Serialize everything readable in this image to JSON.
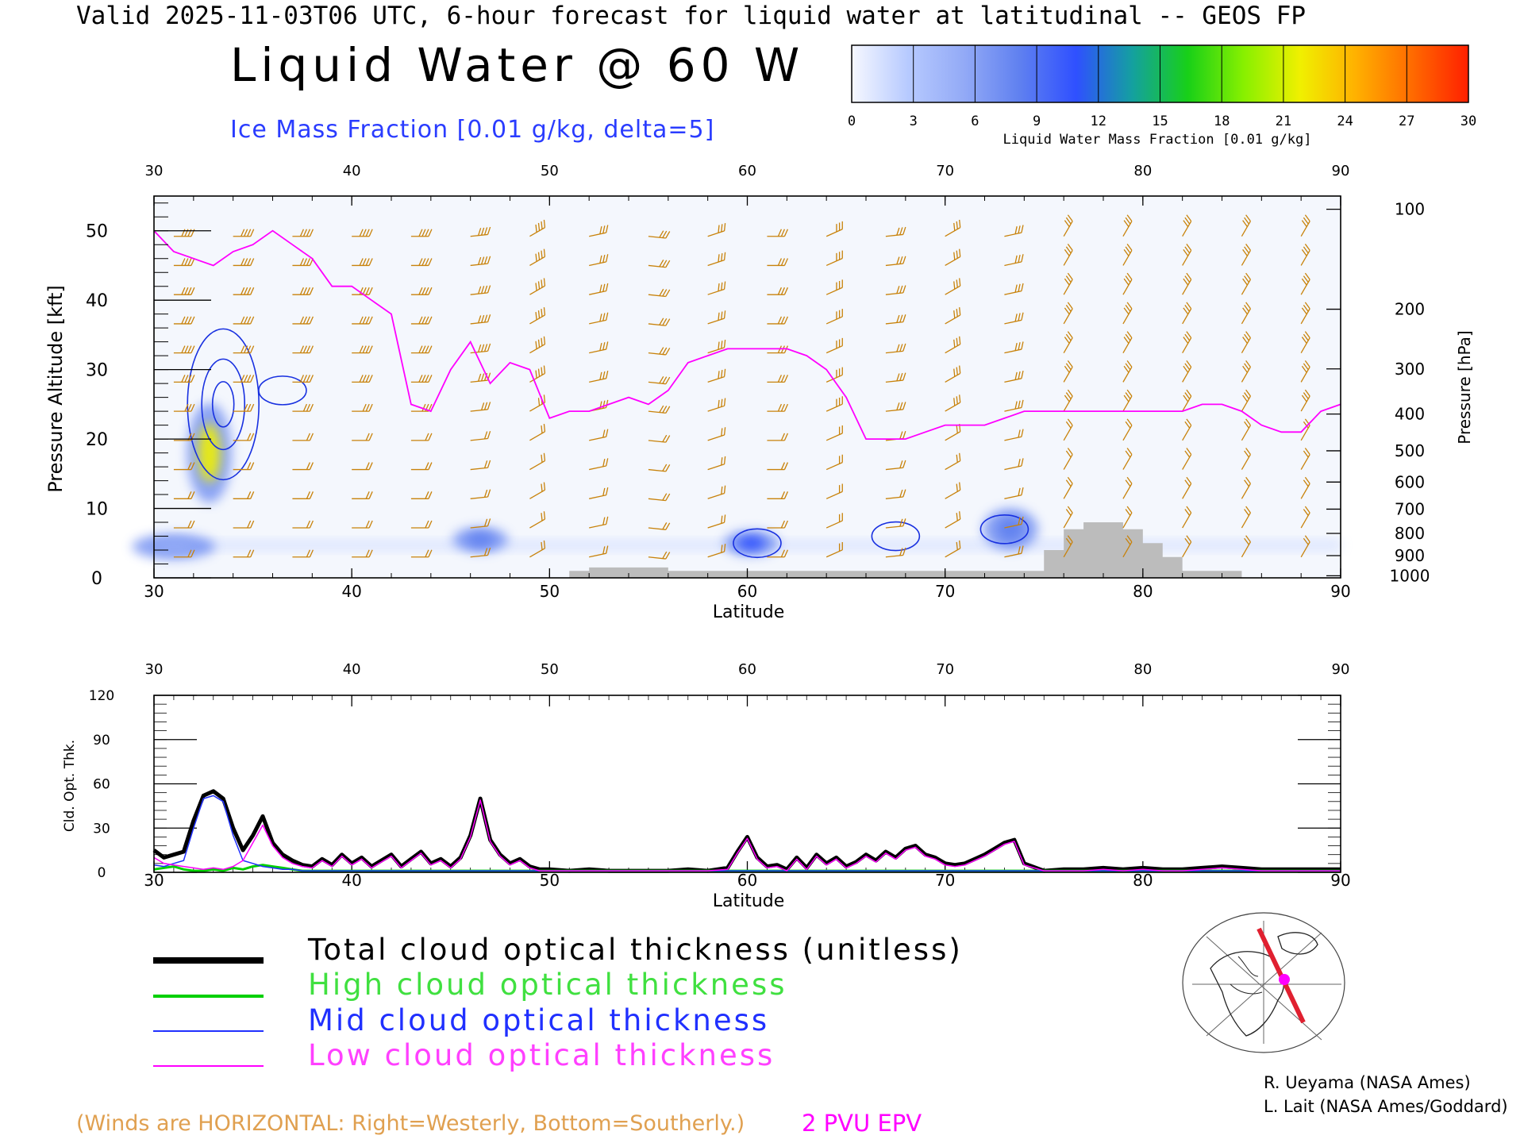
{
  "header": {
    "valid_line": "Valid 2025-11-03T06 UTC, 6-hour forecast for liquid water at latitudinal -- GEOS FP",
    "main_title": "Liquid Water @ 60 W",
    "contour_caption": "Ice Mass Fraction [0.01 g/kg, delta=5]"
  },
  "colorbar": {
    "ticks": [
      "0",
      "3",
      "6",
      "9",
      "12",
      "15",
      "18",
      "21",
      "24",
      "27",
      "30"
    ],
    "label": "Liquid Water Mass Fraction [0.01 g/kg]",
    "colors": [
      "#f6f8ff",
      "#b7caff",
      "#93aaf6",
      "#5f80f0",
      "#2f50ff",
      "#14a0a0",
      "#18d018",
      "#88f000",
      "#f0f000",
      "#ffb000",
      "#ff6a00",
      "#ff2000"
    ]
  },
  "legend": {
    "total": "Total cloud optical thickness (unitless)",
    "high": "High cloud optical thickness",
    "mid": "Mid cloud optical thickness",
    "low": "Low cloud optical thickness"
  },
  "credits": [
    "R. Ueyama (NASA Ames)",
    "L. Lait (NASA Ames/Goddard)"
  ],
  "footer": {
    "winds_note": "(Winds are HORIZONTAL: Right=Westerly, Bottom=Southerly.)",
    "pv_label": "2 PVU EPV"
  },
  "colors": {
    "epv": "#ff00ff",
    "wind_barbs": "#c8820a",
    "ice_contour": "#1830e0",
    "terrain": "#bcbcbc",
    "total": "#000000",
    "high": "#00d000",
    "mid": "#2030ff",
    "low": "#ff00ff",
    "map_track": "#e02030"
  },
  "chart_data": [
    {
      "type": "heatmap",
      "xlabel": "Latitude",
      "ylabel": "Pressure Altitude [kft]",
      "ylabel_right": "Pressure [hPa]",
      "xlim": [
        30,
        90
      ],
      "ylim": [
        0,
        55
      ],
      "x_ticks": [
        30,
        40,
        50,
        60,
        70,
        80,
        90
      ],
      "y_ticks": [
        0,
        10,
        20,
        30,
        40,
        50
      ],
      "pressure_ticks": [
        {
          "hpa": "100",
          "kft": 53.1
        },
        {
          "hpa": "200",
          "kft": 38.7
        },
        {
          "hpa": "300",
          "kft": 30.1
        },
        {
          "hpa": "400",
          "kft": 23.6
        },
        {
          "hpa": "500",
          "kft": 18.3
        },
        {
          "hpa": "600",
          "kft": 13.8
        },
        {
          "hpa": "700",
          "kft": 9.9
        },
        {
          "hpa": "800",
          "kft": 6.4
        },
        {
          "hpa": "900",
          "kft": 3.2
        },
        {
          "hpa": "1000",
          "kft": 0.3
        }
      ],
      "epv_2pvu_line": {
        "lat": [
          30,
          31,
          32,
          33,
          34,
          35,
          36,
          37,
          38,
          39,
          40,
          41,
          42,
          43,
          44,
          45,
          46,
          47,
          48,
          49,
          50,
          51,
          52,
          53,
          54,
          55,
          56,
          57,
          58,
          59,
          60,
          61,
          62,
          63,
          64,
          65,
          66,
          67,
          68,
          69,
          70,
          71,
          72,
          73,
          74,
          75,
          76,
          77,
          78,
          79,
          80,
          81,
          82,
          83,
          84,
          85,
          86,
          87,
          88,
          89,
          90
        ],
        "kft": [
          50,
          47,
          46,
          45,
          47,
          48,
          50,
          48,
          46,
          42,
          42,
          40,
          38,
          25,
          24,
          30,
          34,
          28,
          31,
          30,
          23,
          24,
          24,
          25,
          26,
          25,
          27,
          31,
          32,
          33,
          33,
          33,
          33,
          32,
          30,
          26,
          20,
          20,
          20,
          21,
          22,
          22,
          22,
          23,
          24,
          24,
          24,
          24,
          24,
          24,
          24,
          24,
          24,
          25,
          25,
          24,
          22,
          21,
          21,
          24,
          25
        ]
      },
      "terrain": {
        "lat": [
          30,
          50,
          51,
          52,
          53,
          54,
          55,
          56,
          57,
          58,
          60,
          62,
          64,
          66,
          68,
          70,
          72,
          74,
          75,
          76,
          77,
          78,
          79,
          80,
          81,
          82,
          83,
          84,
          85,
          86,
          90
        ],
        "kft": [
          0,
          0,
          1,
          1.5,
          1.5,
          1.5,
          1.5,
          1,
          1,
          1,
          1,
          1,
          1,
          1,
          1,
          1,
          1,
          1,
          4,
          7,
          8,
          8,
          7,
          5,
          3,
          1,
          1,
          1,
          0,
          0,
          0
        ]
      },
      "liquid_water_blobs": [
        {
          "lat": 32.8,
          "kft": 18,
          "value": 21,
          "lat_extent": 0.8,
          "kft_extent": 6
        },
        {
          "lat": 60.2,
          "kft": 5,
          "value": 12,
          "lat_extent": 1.0,
          "kft_extent": 1.5
        },
        {
          "lat": 46.5,
          "kft": 5.5,
          "value": 8,
          "lat_extent": 1.0,
          "kft_extent": 1.5
        },
        {
          "lat": 73.3,
          "kft": 7,
          "value": 7,
          "lat_extent": 1.0,
          "kft_extent": 2.5
        },
        {
          "lat": 31,
          "kft": 4.5,
          "value": 6,
          "lat_extent": 1.5,
          "kft_extent": 1.5
        }
      ],
      "ice_contours": [
        {
          "lat": 33.5,
          "kft": 25,
          "value": 10
        },
        {
          "lat": 36.5,
          "kft": 27,
          "value": 5
        },
        {
          "lat": 60.5,
          "kft": 5,
          "value": 5
        },
        {
          "lat": 67.5,
          "kft": 6,
          "value": 5
        },
        {
          "lat": 73,
          "kft": 7,
          "value": 5
        }
      ]
    },
    {
      "type": "line",
      "xlabel": "Latitude",
      "ylabel": "Cld. Opt. Thk.",
      "xlim": [
        30,
        90
      ],
      "ylim": [
        0,
        120
      ],
      "x_ticks": [
        30,
        40,
        50,
        60,
        70,
        80,
        90
      ],
      "y_ticks": [
        0,
        30,
        60,
        90,
        120
      ],
      "x": [
        30,
        30.5,
        31,
        31.5,
        32,
        32.5,
        33,
        33.5,
        34,
        34.5,
        35,
        35.5,
        36,
        36.5,
        37,
        37.5,
        38,
        38.5,
        39,
        39.5,
        40,
        40.5,
        41,
        41.5,
        42,
        42.5,
        43,
        43.5,
        44,
        44.5,
        45,
        45.5,
        46,
        46.5,
        47,
        47.5,
        48,
        48.5,
        49,
        49.5,
        50,
        51,
        52,
        53,
        54,
        55,
        56,
        57,
        58,
        59,
        59.5,
        60,
        60.5,
        61,
        61.5,
        62,
        62.5,
        63,
        63.5,
        64,
        64.5,
        65,
        65.5,
        66,
        66.5,
        67,
        67.5,
        68,
        68.5,
        69,
        69.5,
        70,
        70.5,
        71,
        71.5,
        72,
        72.5,
        73,
        73.5,
        74,
        75,
        76,
        77,
        78,
        79,
        80,
        81,
        82,
        83,
        84,
        85,
        86,
        87,
        88,
        89,
        90
      ],
      "series": [
        {
          "name": "Total cloud optical thickness (unitless)",
          "values": [
            15,
            10,
            12,
            14,
            35,
            52,
            55,
            50,
            30,
            15,
            25,
            38,
            20,
            12,
            8,
            5,
            4,
            9,
            5,
            12,
            6,
            10,
            4,
            8,
            12,
            4,
            9,
            14,
            6,
            9,
            4,
            10,
            25,
            50,
            22,
            12,
            6,
            9,
            4,
            2,
            2,
            1,
            2,
            1,
            1,
            1,
            1,
            2,
            1,
            3,
            14,
            24,
            10,
            4,
            5,
            2,
            10,
            3,
            12,
            6,
            10,
            4,
            7,
            12,
            8,
            14,
            10,
            16,
            18,
            12,
            10,
            6,
            5,
            6,
            9,
            12,
            16,
            20,
            22,
            6,
            1,
            2,
            2,
            3,
            2,
            3,
            2,
            2,
            3,
            4,
            3,
            2,
            2,
            2,
            2,
            2
          ]
        },
        {
          "name": "High cloud optical thickness",
          "values": [
            2,
            3,
            4,
            2,
            1,
            1,
            2,
            1,
            3,
            2,
            4,
            5,
            4,
            3,
            2,
            1,
            1,
            1,
            1,
            1,
            1,
            1,
            1,
            1,
            1,
            1,
            1,
            1,
            1,
            1,
            1,
            1,
            1,
            1,
            1,
            1,
            1,
            1,
            1,
            1,
            1,
            1,
            1,
            1,
            1,
            1,
            1,
            1,
            1,
            1,
            1,
            1,
            1,
            1,
            1,
            1,
            1,
            1,
            1,
            1,
            1,
            1,
            1,
            1,
            1,
            1,
            1,
            1,
            1,
            1,
            1,
            1,
            1,
            1,
            1,
            1,
            1,
            1,
            1,
            1,
            1,
            1,
            1,
            1,
            1,
            1,
            1,
            1,
            1,
            1,
            1,
            1,
            1,
            1,
            1,
            1
          ]
        },
        {
          "name": "Mid cloud optical thickness",
          "values": [
            5,
            4,
            6,
            8,
            30,
            50,
            52,
            48,
            25,
            8,
            6,
            4,
            3,
            2,
            2,
            1,
            1,
            1,
            1,
            1,
            1,
            1,
            1,
            1,
            1,
            1,
            1,
            1,
            1,
            1,
            1,
            1,
            1,
            1,
            1,
            1,
            1,
            1,
            1,
            1,
            1,
            1,
            1,
            1,
            1,
            1,
            1,
            1,
            1,
            1,
            1,
            1,
            1,
            1,
            1,
            1,
            1,
            1,
            1,
            1,
            1,
            1,
            1,
            1,
            1,
            1,
            1,
            1,
            1,
            1,
            1,
            1,
            1,
            1,
            1,
            1,
            1,
            1,
            1,
            1,
            1,
            1,
            1,
            1,
            1,
            1,
            1,
            1,
            1,
            1,
            1,
            1,
            1,
            1,
            1,
            1
          ]
        },
        {
          "name": "Low cloud optical thickness",
          "values": [
            10,
            6,
            5,
            4,
            3,
            2,
            3,
            2,
            4,
            8,
            20,
            32,
            18,
            10,
            6,
            4,
            3,
            8,
            4,
            11,
            5,
            9,
            3,
            7,
            11,
            3,
            8,
            13,
            5,
            8,
            3,
            9,
            24,
            49,
            21,
            11,
            5,
            8,
            3,
            1,
            1,
            1,
            1,
            1,
            1,
            1,
            1,
            1,
            1,
            2,
            13,
            23,
            9,
            3,
            4,
            1,
            9,
            2,
            11,
            5,
            9,
            3,
            6,
            11,
            7,
            13,
            9,
            15,
            17,
            11,
            9,
            5,
            4,
            5,
            8,
            11,
            15,
            19,
            21,
            5,
            1,
            1,
            1,
            2,
            1,
            2,
            1,
            1,
            2,
            3,
            2,
            1,
            1,
            1,
            1,
            1
          ]
        }
      ]
    }
  ]
}
